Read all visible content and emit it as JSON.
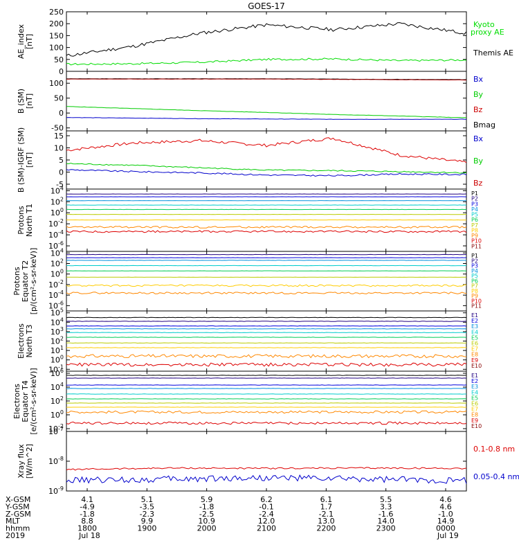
{
  "title": "GOES-17",
  "panels": [
    {
      "id": "ae",
      "ylabel": [
        "AE_index",
        "[nT]"
      ],
      "ylim": [
        0,
        250
      ],
      "ticks": [
        "250",
        "200",
        "150",
        "100",
        "50",
        "0"
      ],
      "legend": [
        {
          "text": "Kyoto",
          "color": "#00dd00"
        },
        {
          "text": "proxy AE",
          "color": "#00dd00"
        },
        {
          "text": "Themis AE",
          "color": "#000000"
        }
      ]
    },
    {
      "id": "bsm",
      "ylabel": [
        "B (SM)",
        "[nT]"
      ],
      "ylim": [
        -60,
        140
      ],
      "ticks": [
        "100",
        "50",
        "0",
        "-50"
      ],
      "legend": [
        {
          "text": "Bx",
          "color": "#0000cc"
        },
        {
          "text": "By",
          "color": "#00cc00"
        },
        {
          "text": "Bz",
          "color": "#cc0000"
        },
        {
          "text": "Bmag",
          "color": "#000000"
        }
      ]
    },
    {
      "id": "bigrf",
      "ylabel": [
        "B (SM)-IGRF (SM)",
        "[nT]"
      ],
      "ylim": [
        -7,
        17
      ],
      "ticks": [
        "15",
        "10",
        "5",
        "0",
        "-5"
      ],
      "legend": [
        {
          "text": "Bx",
          "color": "#0000cc"
        },
        {
          "text": "By",
          "color": "#00cc00"
        },
        {
          "text": "Bz",
          "color": "#cc0000"
        }
      ]
    },
    {
      "id": "pn",
      "ylabel": [
        "Protons",
        "North T1"
      ],
      "ylim": [
        -7,
        4.3
      ],
      "ticks": [
        "10^4",
        "10^2",
        "10^0",
        "10^-2",
        "10^-4",
        "10^-6"
      ],
      "legend": [
        "P1",
        "P2",
        "P3",
        "P4",
        "P5",
        "P6",
        "P7",
        "P8",
        "P9",
        "P10",
        "P11"
      ]
    },
    {
      "id": "pe",
      "ylabel": [
        "Protons",
        "Equator T2",
        "[p/(cm²-s-sr-keV)]"
      ],
      "ylim": [
        -7,
        4.3
      ],
      "ticks": [
        "10^4",
        "10^2",
        "10^0",
        "10^-2",
        "10^-4",
        "10^-6"
      ],
      "legend": [
        "P1",
        "P2",
        "P3",
        "P4",
        "P5",
        "P6",
        "P7",
        "P8",
        "P9",
        "P10",
        "P11"
      ]
    },
    {
      "id": "en",
      "ylabel": [
        "Electrons",
        "North T3"
      ],
      "ylim": [
        -1.2,
        5.2
      ],
      "ticks": [
        "10^5",
        "10^4",
        "10^3",
        "10^2",
        "10^1",
        "10^0",
        "10^-1"
      ],
      "legend": [
        "E1",
        "E2",
        "E3",
        "E4",
        "E5",
        "E6",
        "E7",
        "E8",
        "E9",
        "E10"
      ]
    },
    {
      "id": "ee",
      "ylabel": [
        "Electrons",
        "Equator T4",
        "[e/(cm²-s-sr-keV)]"
      ],
      "ylim": [
        -2.4,
        6.3
      ],
      "ticks": [
        "10^6",
        "10^4",
        "10^2",
        "10^0",
        "10^-2"
      ],
      "legend": [
        "E1",
        "E2",
        "E3",
        "E4",
        "E5",
        "E6",
        "E7",
        "E8",
        "E9",
        "E10"
      ]
    },
    {
      "id": "xray",
      "ylabel": [
        "Xray flux",
        "[W/m^2]"
      ],
      "ylim": [
        -9,
        -7
      ],
      "ticks": [
        "10^-7",
        "10^-8",
        "10^-9"
      ],
      "legend": [
        {
          "text": "0.1-0.8 nm",
          "color": "#dd0000"
        },
        {
          "text": "0.05-0.4 nm",
          "color": "#0000cc"
        }
      ]
    }
  ],
  "channel_colors": [
    "#000000",
    "#200080",
    "#0000dd",
    "#0090dd",
    "#00cccc",
    "#00cc55",
    "#bbcc00",
    "#ffcc00",
    "#ff8800",
    "#dd0000",
    "#880000"
  ],
  "axis_table": {
    "row_labels": [
      "X-GSM",
      "Y-GSM",
      "Z-GSM",
      "MLT",
      "hhmm",
      "2019"
    ],
    "columns": [
      [
        "4.1",
        "-4.9",
        "-1.8",
        "8.8",
        "1800",
        "Jul 18"
      ],
      [
        "5.1",
        "-3.5",
        "-2.3",
        "9.9",
        "1900",
        ""
      ],
      [
        "5.9",
        "-1.8",
        "-2.5",
        "10.9",
        "2000",
        ""
      ],
      [
        "6.2",
        "-0.1",
        "-2.4",
        "12.0",
        "2100",
        ""
      ],
      [
        "6.1",
        "1.7",
        "-2.1",
        "13.0",
        "2200",
        ""
      ],
      [
        "5.5",
        "3.3",
        "-1.6",
        "14.0",
        "2300",
        ""
      ],
      [
        "4.6",
        "4.6",
        "-1.0",
        "14.9",
        "0000",
        "Jul 19"
      ]
    ]
  },
  "chart_data": [
    {
      "type": "line",
      "title": "GOES-17",
      "ylabel": "AE_index [nT]",
      "ylim": [
        0,
        250
      ],
      "x": [
        "1800",
        "1900",
        "2000",
        "2100",
        "2200",
        "2300",
        "0000"
      ],
      "series": [
        {
          "name": "Themis AE",
          "values": [
            65,
            105,
            160,
            195,
            175,
            200,
            160
          ]
        },
        {
          "name": "Kyoto proxy AE",
          "values": [
            30,
            32,
            38,
            50,
            52,
            45,
            48
          ]
        }
      ]
    },
    {
      "type": "line",
      "ylabel": "B (SM) [nT]",
      "ylim": [
        -60,
        140
      ],
      "x": [
        "1800",
        "1900",
        "2000",
        "2100",
        "2200",
        "2300",
        "0000"
      ],
      "series": [
        {
          "name": "Bmag",
          "values": [
            115,
            115,
            115,
            115,
            114,
            113,
            112
          ]
        },
        {
          "name": "By",
          "values": [
            22,
            15,
            8,
            2,
            -5,
            -10,
            -16
          ]
        },
        {
          "name": "Bx",
          "values": [
            -15,
            -17,
            -19,
            -20,
            -21,
            -21,
            -21
          ]
        }
      ]
    },
    {
      "type": "line",
      "ylabel": "B (SM)-IGRF (SM) [nT]",
      "ylim": [
        -7,
        17
      ],
      "x": [
        "1800",
        "1900",
        "2000",
        "2100",
        "2200",
        "2300",
        "0000"
      ],
      "series": [
        {
          "name": "Bz",
          "values": [
            9,
            12,
            13,
            11,
            14,
            7,
            4
          ]
        },
        {
          "name": "By",
          "values": [
            3.5,
            2.8,
            1.8,
            0.8,
            0.6,
            0.2,
            -0.3
          ]
        },
        {
          "name": "Bx",
          "values": [
            1,
            0.2,
            -0.3,
            -1.2,
            -1.5,
            -0.8,
            -1
          ]
        }
      ]
    },
    {
      "type": "line",
      "ylabel": "Protons North T1",
      "log_y": true,
      "series_levels_log10": [
        3.4,
        2.9,
        2.2,
        1.4,
        0.6,
        -0.3,
        -1.3,
        -2.6,
        -3.4
      ]
    },
    {
      "type": "line",
      "ylabel": "Protons Equator T2 [p/(cm²-s-sr-keV)]",
      "log_y": true,
      "series_levels_log10": [
        3.7,
        3.1,
        2.6,
        1.6,
        0.6,
        -0.6,
        -2.2,
        -3.6
      ]
    },
    {
      "type": "line",
      "ylabel": "Electrons North T3",
      "log_y": true,
      "series_levels_log10": [
        4.5,
        4.1,
        3.6,
        3.3,
        2.9,
        2.4,
        1.8,
        1.3,
        0.4,
        -0.5
      ]
    },
    {
      "type": "line",
      "ylabel": "Electrons Equator T4 [e/(cm²-s-sr-keV)]",
      "log_y": true,
      "series_levels_log10": [
        5.7,
        5.3,
        4.3,
        3.8,
        3.0,
        2.3,
        1.7,
        1.1,
        0.4,
        -1.2
      ]
    },
    {
      "type": "line",
      "ylabel": "Xray flux [W/m^2]",
      "log_y": true,
      "ylim": [
        -9,
        -7
      ],
      "series": [
        {
          "name": "0.1-0.8 nm",
          "level_log10": -8.28
        },
        {
          "name": "0.05-0.4 nm",
          "level_log10": -8.6
        }
      ]
    }
  ]
}
